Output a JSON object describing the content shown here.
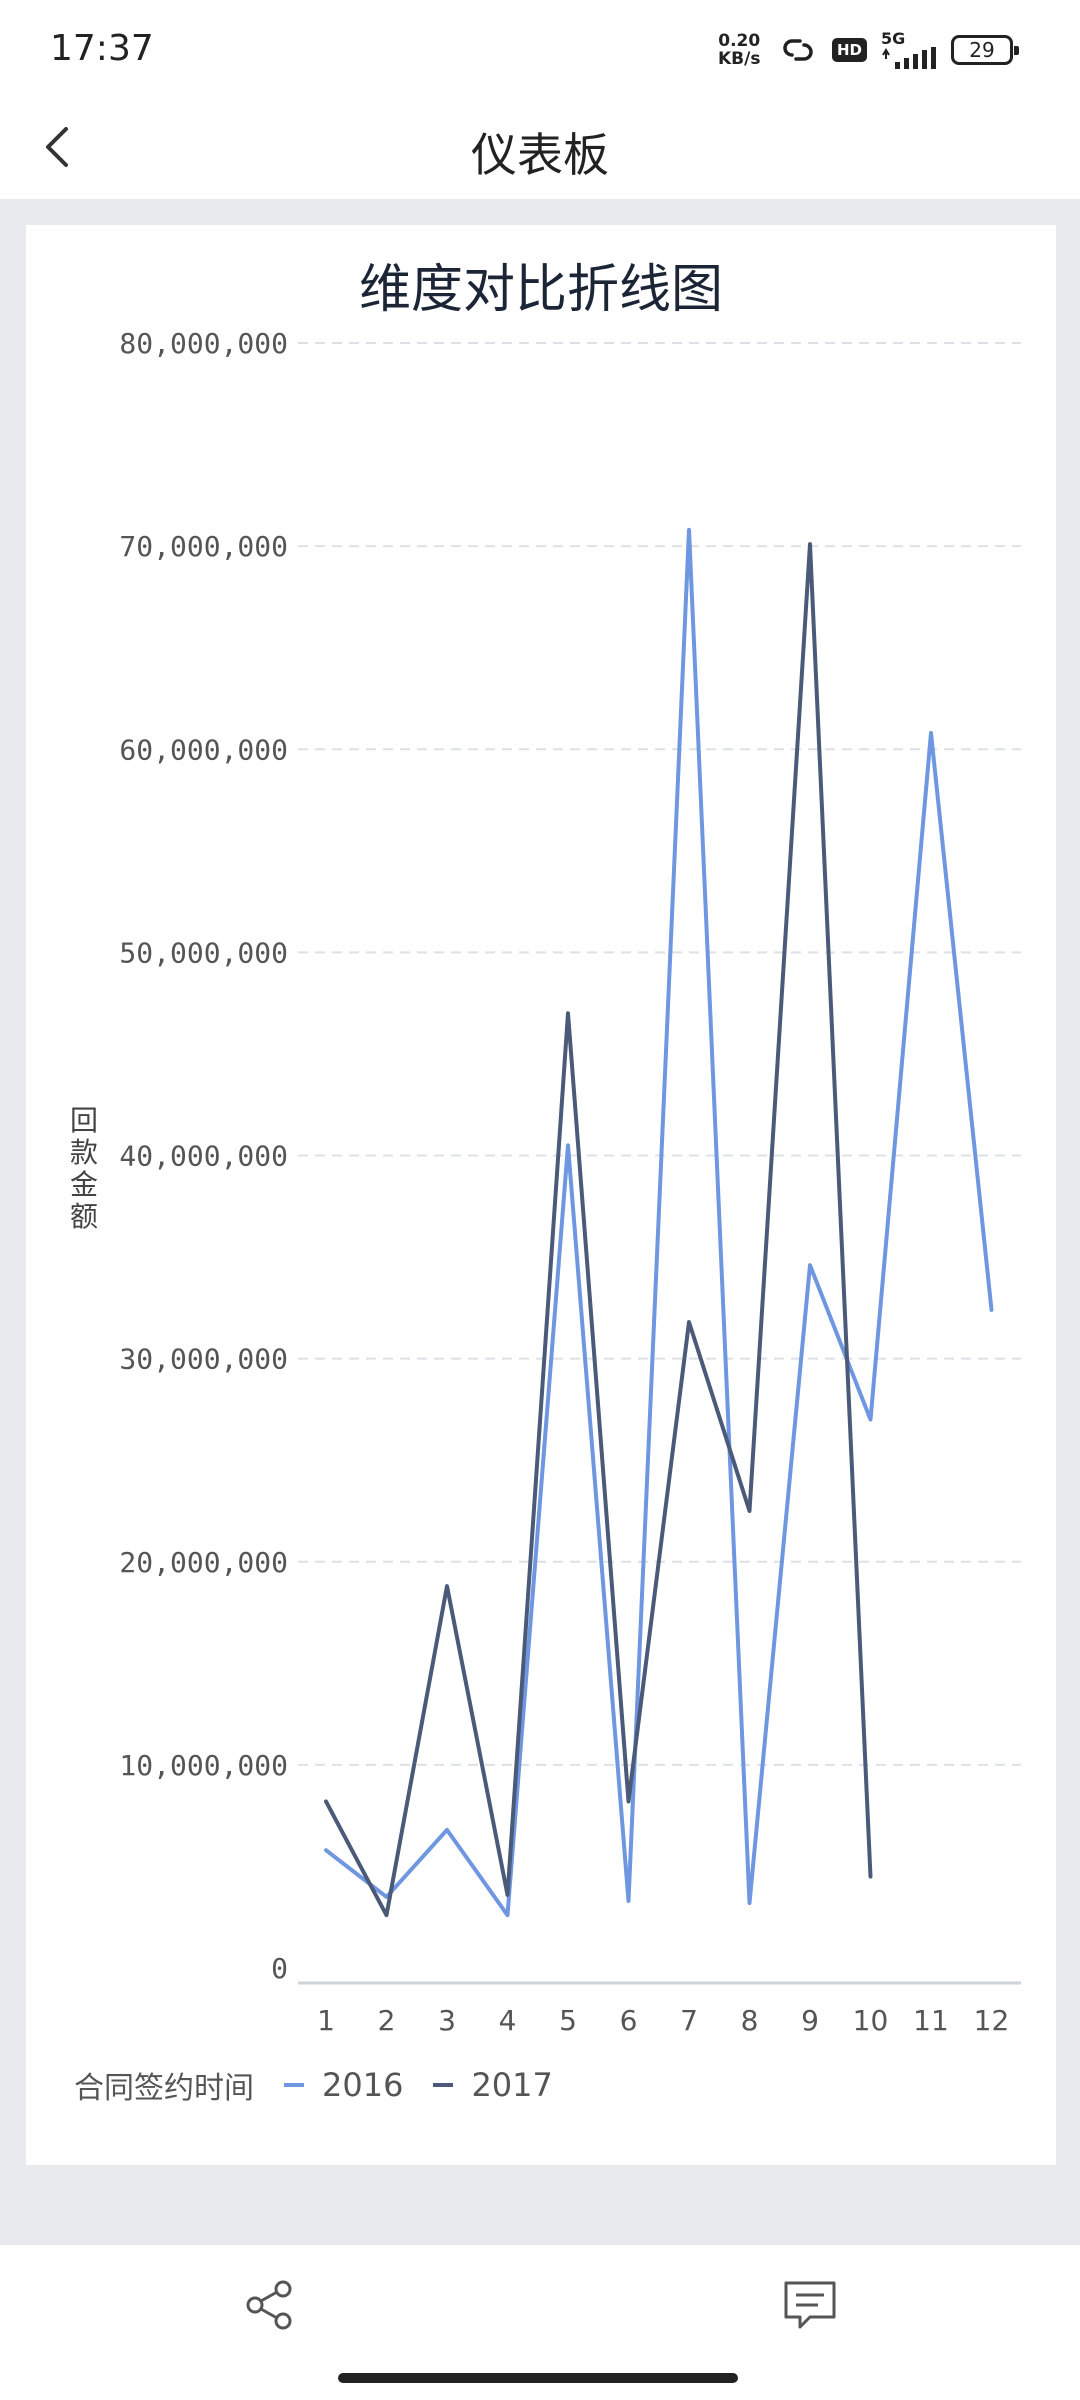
{
  "status": {
    "time": "17:37",
    "net_speed_value": "0.20",
    "net_speed_unit": "KB/s",
    "hd": "HD",
    "signal": "5G",
    "battery": "29"
  },
  "nav": {
    "title": "仪表板"
  },
  "chart_data": {
    "type": "line",
    "title": "维度对比折线图",
    "xlabel": "",
    "ylabel": "回款金额",
    "legend_title": "合同签约时间",
    "categories": [
      "1",
      "2",
      "3",
      "4",
      "5",
      "6",
      "7",
      "8",
      "9",
      "10",
      "11",
      "12"
    ],
    "ylim": [
      0,
      80000000
    ],
    "yticks": [
      0,
      10000000,
      20000000,
      30000000,
      40000000,
      50000000,
      60000000,
      70000000,
      80000000
    ],
    "ytick_labels": [
      "0",
      "10,000,000",
      "20,000,000",
      "30,000,000",
      "40,000,000",
      "50,000,000",
      "60,000,000",
      "70,000,000",
      "80,000,000"
    ],
    "grid": true,
    "legend_position": "bottom-left",
    "series": [
      {
        "name": "2016",
        "color": "#6f96e0",
        "values": [
          5800000,
          3500000,
          6800000,
          2600000,
          40500000,
          3300000,
          70800000,
          3200000,
          34600000,
          27000000,
          60800000,
          32400000
        ]
      },
      {
        "name": "2017",
        "color": "#4b5a78",
        "values": [
          8200000,
          2600000,
          18800000,
          3600000,
          47000000,
          8200000,
          31800000,
          22500000,
          70100000,
          4500000,
          null,
          null
        ]
      }
    ]
  }
}
